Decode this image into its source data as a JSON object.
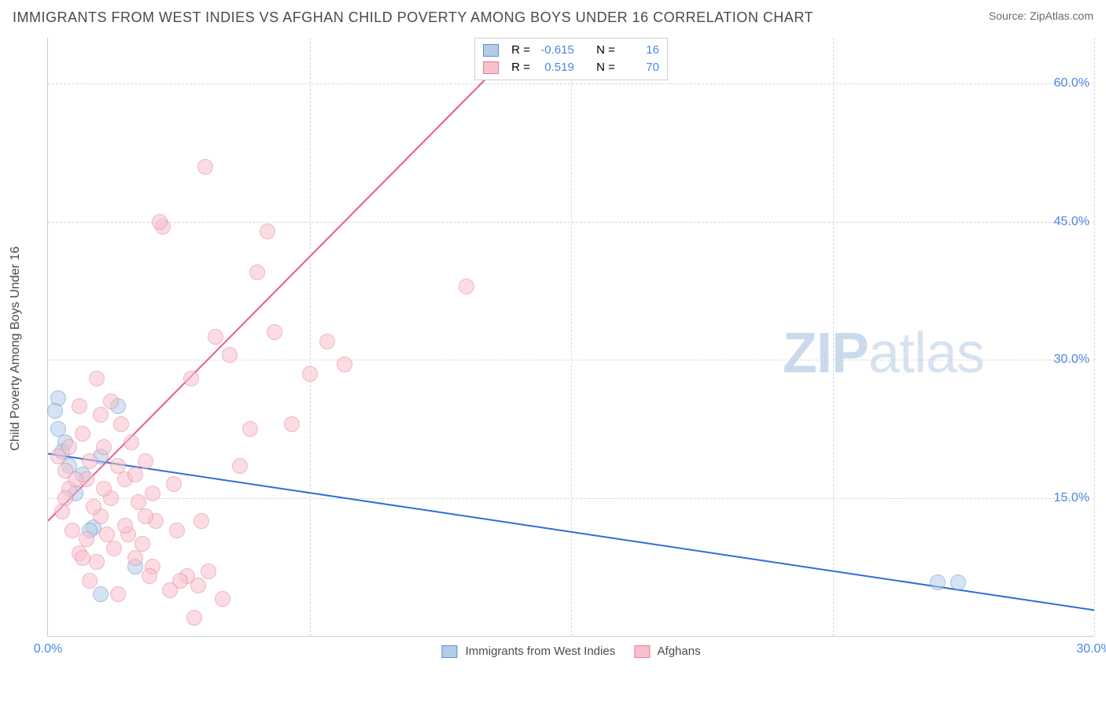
{
  "header": {
    "title": "IMMIGRANTS FROM WEST INDIES VS AFGHAN CHILD POVERTY AMONG BOYS UNDER 16 CORRELATION CHART",
    "source_prefix": "Source: ",
    "source_name": "ZipAtlas.com"
  },
  "ylabel": "Child Poverty Among Boys Under 16",
  "watermark": {
    "part1": "ZIP",
    "part2": "atlas"
  },
  "chart": {
    "type": "scatter",
    "xlim": [
      0,
      30
    ],
    "ylim": [
      0,
      65
    ],
    "xticks": [
      0,
      30
    ],
    "xtick_labels": [
      "0.0%",
      "30.0%"
    ],
    "yticks": [
      15,
      30,
      45,
      60
    ],
    "ytick_labels": [
      "15.0%",
      "30.0%",
      "45.0%",
      "60.0%"
    ],
    "xgrid": [
      7.5,
      15,
      22.5,
      30
    ],
    "ygrid": [
      15,
      30,
      45,
      60
    ],
    "background_color": "#ffffff",
    "grid_color": "#d8d8d8",
    "axis_color": "#cccccc",
    "point_radius": 9,
    "point_opacity": 0.55,
    "series": [
      {
        "name": "Immigrants from West Indies",
        "fill": "#b3cde8",
        "stroke": "#5a8fd6",
        "line_color": "#2f6ed6",
        "R": "-0.615",
        "N": "16",
        "regression": {
          "x1": 0,
          "y1": 19.8,
          "x2": 30,
          "y2": 2.8
        },
        "points": [
          [
            0.2,
            24.5
          ],
          [
            0.3,
            25.8
          ],
          [
            0.3,
            22.5
          ],
          [
            0.4,
            20.0
          ],
          [
            0.5,
            21.0
          ],
          [
            0.6,
            18.5
          ],
          [
            1.0,
            17.5
          ],
          [
            1.2,
            11.5
          ],
          [
            1.3,
            11.8
          ],
          [
            1.5,
            19.5
          ],
          [
            2.0,
            25.0
          ],
          [
            2.5,
            7.5
          ],
          [
            1.5,
            4.5
          ],
          [
            25.5,
            5.8
          ],
          [
            26.1,
            5.8
          ],
          [
            0.8,
            15.5
          ]
        ]
      },
      {
        "name": "Afghans",
        "fill": "#f7c1cc",
        "stroke": "#e87a9a",
        "line_color": "#e65c8a",
        "R": "0.519",
        "N": "70",
        "regression": {
          "x1": 0,
          "y1": 12.5,
          "x2": 13.2,
          "y2": 63
        },
        "points": [
          [
            0.3,
            19.5
          ],
          [
            0.5,
            18.0
          ],
          [
            0.6,
            20.5
          ],
          [
            0.8,
            17.0
          ],
          [
            0.9,
            25.0
          ],
          [
            1.0,
            22.0
          ],
          [
            1.1,
            17.0
          ],
          [
            1.2,
            19.0
          ],
          [
            1.3,
            14.0
          ],
          [
            1.4,
            28.0
          ],
          [
            1.5,
            24.0
          ],
          [
            1.6,
            16.0
          ],
          [
            1.7,
            11.0
          ],
          [
            1.8,
            15.0
          ],
          [
            1.9,
            9.5
          ],
          [
            2.0,
            18.5
          ],
          [
            2.1,
            23.0
          ],
          [
            2.2,
            12.0
          ],
          [
            2.3,
            11.0
          ],
          [
            2.4,
            21.0
          ],
          [
            2.5,
            17.5
          ],
          [
            2.6,
            14.5
          ],
          [
            2.7,
            10.0
          ],
          [
            2.8,
            13.0
          ],
          [
            2.9,
            6.5
          ],
          [
            3.0,
            7.5
          ],
          [
            3.1,
            12.5
          ],
          [
            3.2,
            45.0
          ],
          [
            3.3,
            44.5
          ],
          [
            3.5,
            5.0
          ],
          [
            3.6,
            16.5
          ],
          [
            3.7,
            11.5
          ],
          [
            3.8,
            6.0
          ],
          [
            4.0,
            6.5
          ],
          [
            4.1,
            28.0
          ],
          [
            4.2,
            2.0
          ],
          [
            4.3,
            5.5
          ],
          [
            4.5,
            51.0
          ],
          [
            4.6,
            7.0
          ],
          [
            4.8,
            32.5
          ],
          [
            5.0,
            4.0
          ],
          [
            5.2,
            30.5
          ],
          [
            5.5,
            18.5
          ],
          [
            5.8,
            22.5
          ],
          [
            6.0,
            39.5
          ],
          [
            6.3,
            44.0
          ],
          [
            6.5,
            33.0
          ],
          [
            7.0,
            23.0
          ],
          [
            7.5,
            28.5
          ],
          [
            8.0,
            32.0
          ],
          [
            8.5,
            29.5
          ],
          [
            12.0,
            38.0
          ],
          [
            1.0,
            8.5
          ],
          [
            1.1,
            10.5
          ],
          [
            1.4,
            8.0
          ],
          [
            0.4,
            13.5
          ],
          [
            0.5,
            15.0
          ],
          [
            0.7,
            11.5
          ],
          [
            0.9,
            9.0
          ],
          [
            1.2,
            6.0
          ],
          [
            2.0,
            4.5
          ],
          [
            2.5,
            8.5
          ],
          [
            3.0,
            15.5
          ],
          [
            1.8,
            25.5
          ],
          [
            2.2,
            17.0
          ],
          [
            4.4,
            12.5
          ],
          [
            1.6,
            20.5
          ],
          [
            2.8,
            19.0
          ],
          [
            0.6,
            16.0
          ],
          [
            1.5,
            13.0
          ]
        ]
      }
    ]
  },
  "legend": {
    "series1_label": "Immigrants from West Indies",
    "series2_label": "Afghans"
  },
  "stats": {
    "R_label": "R =",
    "N_label": "N ="
  }
}
